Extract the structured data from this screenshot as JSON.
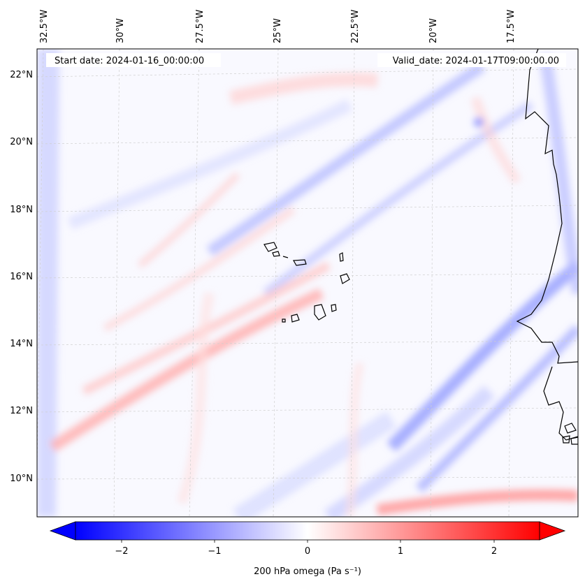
{
  "map": {
    "start_label": "Start date: 2024-01-16_00:00:00",
    "valid_label": "Valid_date: 2024-01-17T09:00:00.00",
    "lon_labels": [
      "32.5°W",
      "30°W",
      "27.5°W",
      "25°W",
      "22.5°W",
      "20°W",
      "17.5°W"
    ],
    "lat_labels": [
      "22°N",
      "20°N",
      "18°N",
      "16°N",
      "14°N",
      "12°N",
      "10°N"
    ],
    "field": "200 hPa omega",
    "region": "Cape Verde / West Africa coast"
  },
  "colorbar": {
    "label": "200 hPa omega (Pa s⁻¹)",
    "ticks": [
      "−2",
      "−1",
      "0",
      "1",
      "2"
    ],
    "min": -2.7,
    "max": 2.7,
    "colormap": "bwr",
    "extend": "both"
  },
  "colors": {
    "neg": "#0000ff",
    "pos": "#ff0000",
    "zero": "#ffffff",
    "grid": "#cccccc"
  }
}
